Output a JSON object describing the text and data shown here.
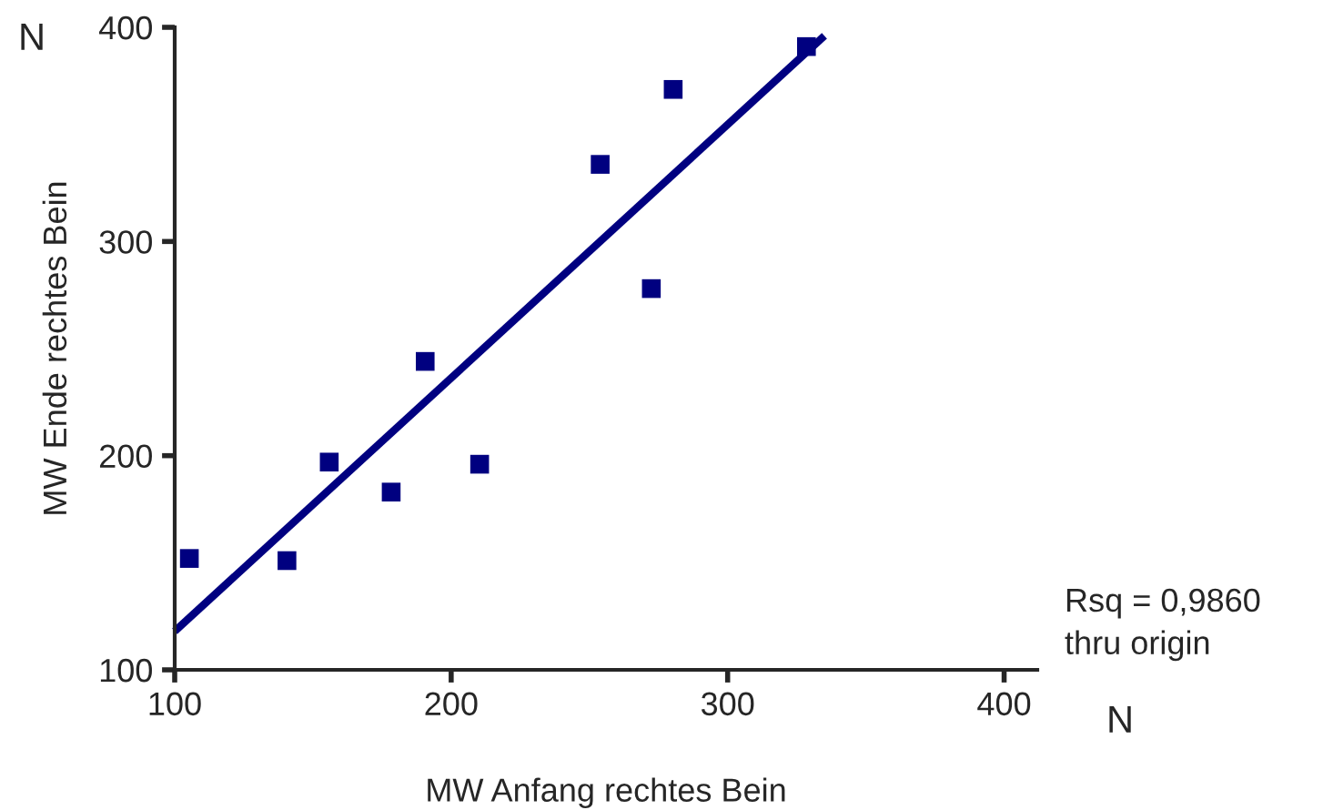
{
  "chart_data": {
    "type": "scatter",
    "xlabel": "MW Anfang rechtes Bein",
    "ylabel": "MW Ende rechtes Bein",
    "x": [
      105.3,
      140.6,
      155.9,
      178.3,
      190.6,
      210.3,
      253.9,
      272.4,
      280.3,
      328.5
    ],
    "series": [
      {
        "color": "#000080",
        "marker": "square",
        "values": [
          152,
          151,
          197,
          183,
          244,
          196,
          336,
          278,
          371,
          391
        ]
      },
      {
        "type": "line",
        "color": "#000080",
        "x": [
          100,
          335
        ],
        "values": [
          118,
          396
        ]
      }
    ],
    "xlim": [
      100,
      412
    ],
    "ylim": [
      100,
      400
    ],
    "xticks": [
      100,
      200,
      300,
      400
    ],
    "yticks": [
      100,
      200,
      300,
      400
    ],
    "grid": false,
    "legend": false,
    "annotations": [
      "N",
      "N",
      "Rsq = 0,9860\nthru origin"
    ]
  }
}
